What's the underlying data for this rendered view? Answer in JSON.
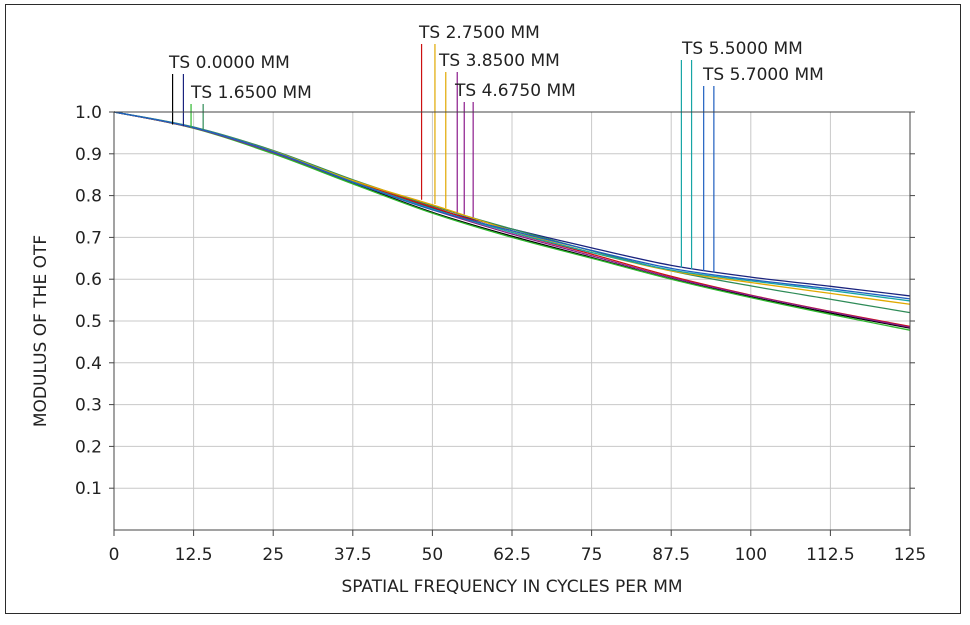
{
  "chart_data": {
    "type": "line",
    "title": "",
    "xlabel": "SPATIAL FREQUENCY IN CYCLES PER MM",
    "ylabel": "MODULUS OF THE OTF",
    "xlim": [
      0,
      125
    ],
    "ylim": [
      0,
      1.0
    ],
    "grid": true,
    "legend": "annotations",
    "x_ticks": [
      "0",
      "12.5",
      "25",
      "37.5",
      "50",
      "62.5",
      "75",
      "87.5",
      "100",
      "112.5",
      "125"
    ],
    "y_ticks": [
      "0.1",
      "0.2",
      "0.3",
      "0.4",
      "0.5",
      "0.6",
      "0.7",
      "0.8",
      "0.9",
      "1.0"
    ],
    "x": [
      0,
      12.5,
      25,
      37.5,
      50,
      62.5,
      75,
      87.5,
      100,
      112.5,
      125
    ],
    "series": [
      {
        "color": "#000000",
        "values": [
          1.0,
          0.962,
          0.902,
          0.83,
          0.76,
          0.703,
          0.652,
          0.601,
          0.558,
          0.519,
          0.483
        ]
      },
      {
        "color": "#1a237e",
        "values": [
          1.0,
          0.963,
          0.905,
          0.832,
          0.77,
          0.72,
          0.675,
          0.633,
          0.605,
          0.583,
          0.56
        ]
      },
      {
        "color": "#2e8b57",
        "values": [
          1.0,
          0.964,
          0.908,
          0.838,
          0.775,
          0.72,
          0.668,
          0.62,
          0.584,
          0.552,
          0.52
        ]
      },
      {
        "color": "#2eb82e",
        "values": [
          1.0,
          0.961,
          0.9,
          0.828,
          0.758,
          0.7,
          0.65,
          0.6,
          0.556,
          0.516,
          0.478
        ]
      },
      {
        "color": "#cc1111",
        "values": [
          1.0,
          0.962,
          0.904,
          0.834,
          0.772,
          0.712,
          0.66,
          0.607,
          0.562,
          0.523,
          0.487
        ]
      },
      {
        "color": "#e0a800",
        "values": [
          1.0,
          0.963,
          0.906,
          0.836,
          0.778,
          0.716,
          0.664,
          0.62,
          0.592,
          0.566,
          0.54
        ]
      },
      {
        "color": "#8b1a8b",
        "values": [
          1.0,
          0.962,
          0.903,
          0.832,
          0.766,
          0.708,
          0.656,
          0.604,
          0.561,
          0.522,
          0.485
        ]
      },
      {
        "color": "#17a5a5",
        "values": [
          1.0,
          0.963,
          0.905,
          0.833,
          0.768,
          0.712,
          0.664,
          0.622,
          0.596,
          0.573,
          0.548
        ]
      },
      {
        "color": "#1e5fbf",
        "values": [
          1.0,
          0.963,
          0.905,
          0.832,
          0.766,
          0.716,
          0.669,
          0.626,
          0.599,
          0.577,
          0.553
        ]
      }
    ],
    "annotations": [
      {
        "label": "TS 0.0000 MM",
        "markers": [
          {
            "x": 9.2,
            "y": 0.97,
            "color": "#000000"
          },
          {
            "x": 10.9,
            "y": 0.966,
            "color": "#1a237e"
          }
        ]
      },
      {
        "label": "TS 1.6500 MM",
        "markers": [
          {
            "x": 12.1,
            "y": 0.963,
            "color": "#2eb82e"
          },
          {
            "x": 14.0,
            "y": 0.957,
            "color": "#2e8b57"
          }
        ]
      },
      {
        "label": "TS 2.7500 MM",
        "markers": [
          {
            "x": 48.3,
            "y": 0.79,
            "color": "#cc1111"
          },
          {
            "x": 50.4,
            "y": 0.78,
            "color": "#e0a800"
          }
        ]
      },
      {
        "label": "TS 3.8500 MM",
        "markers": [
          {
            "x": 52.1,
            "y": 0.77,
            "color": "#e0a800"
          },
          {
            "x": 53.9,
            "y": 0.76,
            "color": "#8b1a8b"
          }
        ]
      },
      {
        "label": "TS 4.6750 MM",
        "markers": [
          {
            "x": 55.0,
            "y": 0.755,
            "color": "#8b1a8b"
          },
          {
            "x": 56.4,
            "y": 0.748,
            "color": "#8b1a8b"
          }
        ]
      },
      {
        "label": "TS 5.5000 MM",
        "markers": [
          {
            "x": 89.1,
            "y": 0.628,
            "color": "#17a5a5"
          },
          {
            "x": 90.7,
            "y": 0.624,
            "color": "#17a5a5"
          }
        ]
      },
      {
        "label": "TS 5.7000 MM",
        "markers": [
          {
            "x": 92.6,
            "y": 0.62,
            "color": "#1e5fbf"
          },
          {
            "x": 94.2,
            "y": 0.616,
            "color": "#1e5fbf"
          }
        ]
      }
    ]
  }
}
